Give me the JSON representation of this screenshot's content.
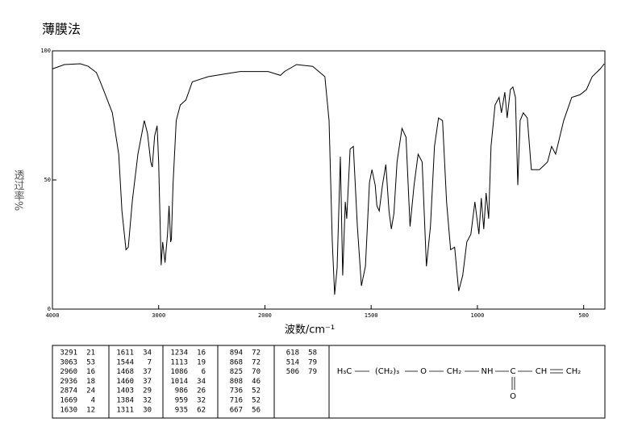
{
  "chart_data": {
    "type": "line",
    "title": "薄膜法",
    "x_label": "波数/cm⁻¹",
    "y_label": "透过率%",
    "xlim": [
      4000,
      400
    ],
    "xscale_break": 2000,
    "ylim": [
      0,
      100
    ],
    "xticks": [
      4000,
      3000,
      2000,
      1500,
      1000,
      500
    ],
    "yticks": [
      0,
      50,
      100
    ],
    "color": "#000000",
    "x": [
      4000,
      3887,
      3737,
      3662,
      3586,
      3549,
      3511,
      3436,
      3376,
      3346,
      3308,
      3286,
      3248,
      3195,
      3135,
      3105,
      3075,
      3060,
      3038,
      3015,
      3000,
      2977,
      2962,
      2940,
      2917,
      2902,
      2887,
      2880,
      2865,
      2835,
      2797,
      2744,
      2684,
      2534,
      2383,
      2233,
      2083,
      1985,
      1927,
      1908,
      1851,
      1775,
      1718,
      1698,
      1683,
      1672,
      1660,
      1645,
      1634,
      1622,
      1615,
      1599,
      1584,
      1565,
      1546,
      1527,
      1508,
      1496,
      1481,
      1473,
      1462,
      1447,
      1431,
      1416,
      1405,
      1393,
      1378,
      1355,
      1336,
      1317,
      1298,
      1279,
      1260,
      1240,
      1221,
      1202,
      1183,
      1164,
      1145,
      1126,
      1107,
      1088,
      1069,
      1050,
      1031,
      1012,
      993,
      982,
      970,
      959,
      947,
      936,
      917,
      898,
      887,
      871,
      860,
      845,
      833,
      821,
      810,
      799,
      784,
      765,
      746,
      708,
      670,
      651,
      632,
      594,
      556,
      517,
      487,
      460,
      422,
      403
    ],
    "values": [
      93,
      94.7,
      95,
      94,
      91.6,
      88,
      84,
      76,
      60,
      38,
      23,
      24,
      42,
      60,
      73,
      68,
      57,
      55,
      67,
      71,
      57,
      17,
      26,
      18,
      29,
      40,
      26,
      27,
      48,
      73,
      79,
      81,
      88,
      90,
      91,
      92,
      92,
      92,
      90.5,
      92,
      94.7,
      94,
      90,
      73,
      26,
      5.6,
      16,
      59,
      13,
      41.5,
      35,
      62,
      63,
      32,
      9,
      16.6,
      49,
      54,
      48,
      40,
      38,
      48,
      56,
      38,
      31,
      37,
      57,
      70,
      66.6,
      32,
      48,
      60,
      57,
      16.6,
      32,
      63,
      74,
      73,
      41.5,
      23,
      24,
      7,
      13,
      26,
      29,
      41.5,
      29,
      43,
      31,
      45,
      35,
      63,
      79,
      82,
      76,
      84,
      74,
      85,
      86,
      82,
      48,
      73,
      76,
      74,
      54,
      54,
      57,
      63,
      60,
      73,
      82,
      83,
      85,
      90,
      93,
      95
    ]
  },
  "peak_table": [
    [
      [
        3291,
        21
      ],
      [
        3063,
        53
      ],
      [
        2960,
        16
      ],
      [
        2936,
        18
      ],
      [
        2874,
        24
      ],
      [
        1669,
        4
      ],
      [
        1630,
        12
      ]
    ],
    [
      [
        1611,
        34
      ],
      [
        1544,
        7
      ],
      [
        1468,
        37
      ],
      [
        1460,
        37
      ],
      [
        1403,
        29
      ],
      [
        1384,
        32
      ],
      [
        1311,
        30
      ]
    ],
    [
      [
        1234,
        16
      ],
      [
        1113,
        19
      ],
      [
        1086,
        6
      ],
      [
        1014,
        34
      ],
      [
        986,
        26
      ],
      [
        959,
        32
      ],
      [
        935,
        62
      ]
    ],
    [
      [
        894,
        72
      ],
      [
        868,
        72
      ],
      [
        825,
        70
      ],
      [
        808,
        46
      ],
      [
        736,
        52
      ],
      [
        716,
        52
      ],
      [
        667,
        56
      ]
    ],
    [
      [
        618,
        58
      ],
      [
        514,
        79
      ],
      [
        506,
        79
      ]
    ]
  ],
  "structure": {
    "groups": [
      "H₃C",
      "(CH₂)₃",
      "O",
      "CH₂",
      "NH",
      "C",
      "CH",
      "CH₂"
    ],
    "carbonyl_o": "O"
  }
}
